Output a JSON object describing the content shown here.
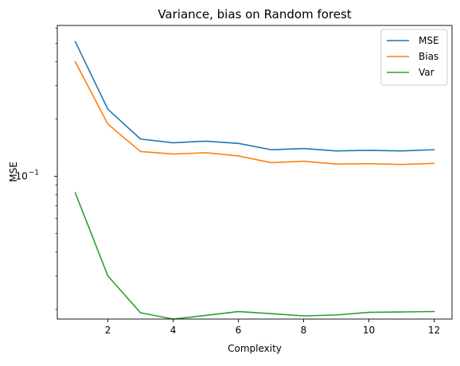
{
  "chart_data": {
    "type": "line",
    "title": "Variance, bias on Random forest",
    "xlabel": "Complexity",
    "ylabel": "MSE",
    "x": [
      1,
      2,
      3,
      4,
      5,
      6,
      7,
      8,
      9,
      10,
      11,
      12
    ],
    "xlim": [
      0.45,
      12.55
    ],
    "ylim": [
      0.0178,
      0.62
    ],
    "yscale": "log",
    "xticks": [
      2,
      4,
      6,
      8,
      10,
      12
    ],
    "xtick_labels": [
      "2",
      "4",
      "6",
      "8",
      "10",
      12
    ],
    "yticks": [
      {
        "value": 0.1,
        "base": "10",
        "exponent": "−1"
      }
    ],
    "grid": false,
    "legend_position": "top-right",
    "series": [
      {
        "name": "MSE",
        "color": "#1f77b4",
        "values": [
          0.51,
          0.225,
          0.157,
          0.15,
          0.153,
          0.149,
          0.138,
          0.14,
          0.136,
          0.137,
          0.136,
          0.138
        ]
      },
      {
        "name": "Bias",
        "color": "#ff7f0e",
        "values": [
          0.4,
          0.188,
          0.135,
          0.131,
          0.133,
          0.128,
          0.118,
          0.12,
          0.116,
          0.1165,
          0.1155,
          0.117
        ]
      },
      {
        "name": "Var",
        "color": "#2ca02c",
        "values": [
          0.082,
          0.03,
          0.0192,
          0.0178,
          0.0186,
          0.0195,
          0.019,
          0.0185,
          0.0187,
          0.0193,
          0.0194,
          0.0195
        ]
      }
    ]
  }
}
